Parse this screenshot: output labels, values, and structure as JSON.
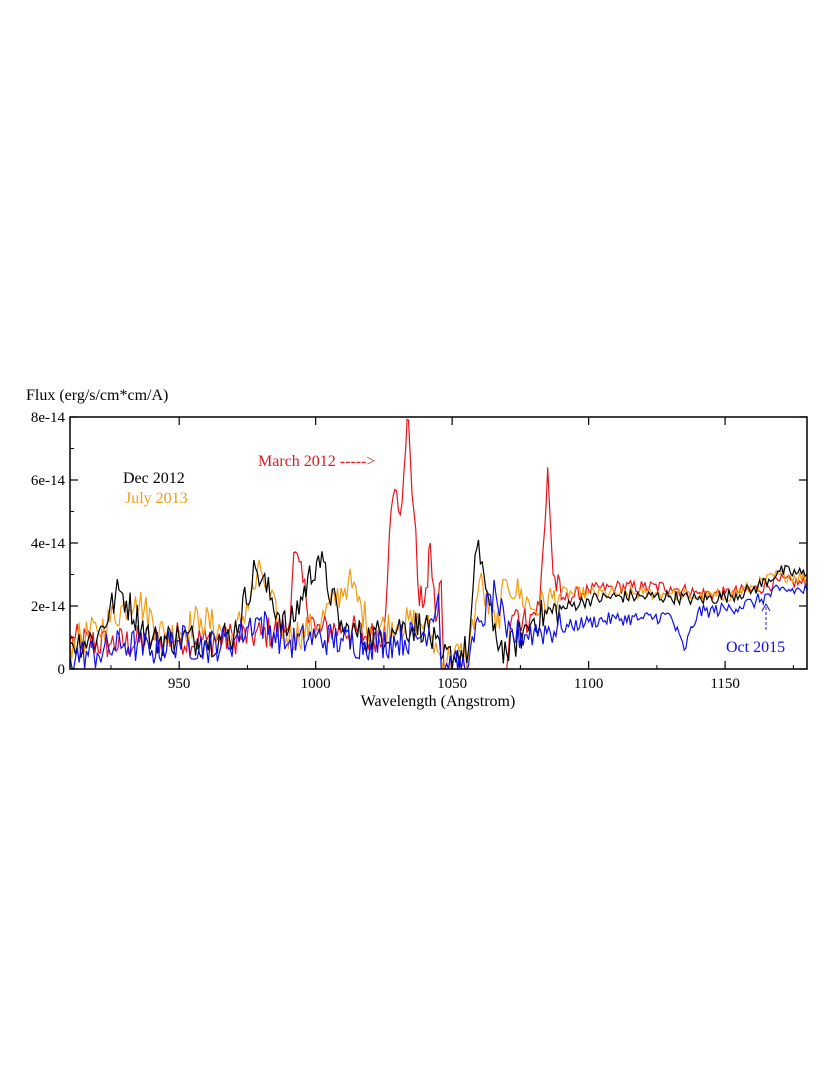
{
  "chart_data": {
    "type": "line",
    "title": "",
    "xlabel": "Wavelength (Angstrom)",
    "ylabel": "Flux (erg/s/cm*cm/A)",
    "xlim": [
      910,
      1180
    ],
    "ylim": [
      0,
      8e-14
    ],
    "x_ticks": [
      950,
      1000,
      1050,
      1100,
      1150
    ],
    "y_ticks": [
      0,
      2e-14,
      4e-14,
      6e-14,
      8e-14
    ],
    "y_tick_labels": [
      "0",
      "2e-14",
      "4e-14",
      "6e-14",
      "8e-14"
    ],
    "grid": false,
    "series": [
      {
        "name": "March 2012",
        "color": "#e8141b",
        "points": [
          [
            910,
            9e-15
          ],
          [
            925,
            8e-15
          ],
          [
            940,
            9e-15
          ],
          [
            950,
            1e-14
          ],
          [
            960,
            9e-15
          ],
          [
            970,
            1e-14
          ],
          [
            980,
            1.1e-14
          ],
          [
            990,
            1.3e-14
          ],
          [
            992,
            3.7e-14
          ],
          [
            1000,
            1.2e-14
          ],
          [
            1010,
            1.3e-14
          ],
          [
            1020,
            1e-14
          ],
          [
            1025,
            1.2e-14
          ],
          [
            1027,
            4.3e-14
          ],
          [
            1029,
            5.7e-14
          ],
          [
            1031,
            4.9e-14
          ],
          [
            1033,
            7e-14
          ],
          [
            1034,
            7.9e-14
          ],
          [
            1036,
            5e-14
          ],
          [
            1038,
            2e-14
          ],
          [
            1041,
            2.6e-14
          ],
          [
            1042,
            4e-14
          ],
          [
            1044,
            1.5e-14
          ],
          [
            1046,
            2.8e-14
          ],
          [
            1047,
            0.0
          ],
          [
            1070,
            0.0
          ],
          [
            1072,
            1.7e-14
          ],
          [
            1076,
            1.6e-14
          ],
          [
            1080,
            1.8e-14
          ],
          [
            1082,
            2e-14
          ],
          [
            1084,
            4.6e-14
          ],
          [
            1085,
            6.4e-14
          ],
          [
            1087,
            3e-14
          ],
          [
            1090,
            2.2e-14
          ],
          [
            1100,
            2.5e-14
          ],
          [
            1110,
            2.6e-14
          ],
          [
            1120,
            2.6e-14
          ],
          [
            1130,
            2.6e-14
          ],
          [
            1140,
            2.4e-14
          ],
          [
            1150,
            2.4e-14
          ],
          [
            1160,
            2.5e-14
          ],
          [
            1170,
            2.8e-14
          ],
          [
            1180,
            2.7e-14
          ]
        ]
      },
      {
        "name": "Dec 2012",
        "color": "#000000",
        "points": [
          [
            910,
            8e-15
          ],
          [
            920,
            1e-14
          ],
          [
            928,
            2.5e-14
          ],
          [
            940,
            9e-15
          ],
          [
            950,
            1e-14
          ],
          [
            960,
            9e-15
          ],
          [
            970,
            1.1e-14
          ],
          [
            978,
            3.2e-14
          ],
          [
            990,
            1.2e-14
          ],
          [
            1001,
            3.6e-14
          ],
          [
            1010,
            1.2e-14
          ],
          [
            1020,
            1e-14
          ],
          [
            1030,
            1.3e-14
          ],
          [
            1040,
            1.4e-14
          ],
          [
            1046,
            3e-15
          ],
          [
            1056,
            6e-15
          ],
          [
            1059,
            3.8e-14
          ],
          [
            1061,
            3.4e-14
          ],
          [
            1065,
            1.2e-14
          ],
          [
            1070,
            5e-15
          ],
          [
            1080,
            1.6e-14
          ],
          [
            1090,
            1.9e-14
          ],
          [
            1100,
            2.2e-14
          ],
          [
            1110,
            2.3e-14
          ],
          [
            1120,
            2.3e-14
          ],
          [
            1130,
            2.3e-14
          ],
          [
            1140,
            2.2e-14
          ],
          [
            1150,
            2.3e-14
          ],
          [
            1160,
            2.5e-14
          ],
          [
            1170,
            3.1e-14
          ],
          [
            1180,
            3e-14
          ]
        ]
      },
      {
        "name": "July 2013",
        "color": "#f39c12",
        "points": [
          [
            910,
            8e-15
          ],
          [
            920,
            1.2e-14
          ],
          [
            934,
            2.3e-14
          ],
          [
            945,
            1e-14
          ],
          [
            950,
            1.2e-14
          ],
          [
            958,
            1.6e-14
          ],
          [
            970,
            1e-14
          ],
          [
            980,
            3.1e-14
          ],
          [
            988,
            1e-14
          ],
          [
            1000,
            1.3e-14
          ],
          [
            1012,
            2.8e-14
          ],
          [
            1020,
            1.3e-14
          ],
          [
            1030,
            1.4e-14
          ],
          [
            1040,
            1.5e-14
          ],
          [
            1046,
            3e-15
          ],
          [
            1056,
            5e-15
          ],
          [
            1060,
            2.8e-14
          ],
          [
            1066,
            1.3e-14
          ],
          [
            1070,
            2.8e-14
          ],
          [
            1080,
            1.9e-14
          ],
          [
            1090,
            2.4e-14
          ],
          [
            1100,
            2.4e-14
          ],
          [
            1110,
            2.4e-14
          ],
          [
            1120,
            2.4e-14
          ],
          [
            1130,
            2.4e-14
          ],
          [
            1140,
            2.3e-14
          ],
          [
            1150,
            2.3e-14
          ],
          [
            1160,
            2.6e-14
          ],
          [
            1170,
            3e-14
          ],
          [
            1180,
            2.9e-14
          ]
        ]
      },
      {
        "name": "Oct 2015",
        "color": "#1010e8",
        "points": [
          [
            910,
            4e-15
          ],
          [
            920,
            5e-15
          ],
          [
            930,
            8e-15
          ],
          [
            940,
            6e-15
          ],
          [
            950,
            9e-15
          ],
          [
            960,
            7e-15
          ],
          [
            970,
            9e-15
          ],
          [
            978,
            1.6e-14
          ],
          [
            990,
            8e-15
          ],
          [
            1000,
            1e-14
          ],
          [
            1010,
            9e-15
          ],
          [
            1020,
            8e-15
          ],
          [
            1030,
            9e-15
          ],
          [
            1040,
            1.1e-14
          ],
          [
            1045,
            2.4e-14
          ],
          [
            1046,
            0.0
          ],
          [
            1056,
            1e-15
          ],
          [
            1060,
            1.5e-14
          ],
          [
            1066,
            2.4e-14
          ],
          [
            1070,
            1e-14
          ],
          [
            1080,
            1.2e-14
          ],
          [
            1090,
            1.3e-14
          ],
          [
            1100,
            1.5e-14
          ],
          [
            1110,
            1.6e-14
          ],
          [
            1120,
            1.6e-14
          ],
          [
            1130,
            1.7e-14
          ],
          [
            1135,
            6e-15
          ],
          [
            1140,
            1.8e-14
          ],
          [
            1150,
            1.9e-14
          ],
          [
            1160,
            2.1e-14
          ],
          [
            1170,
            2.5e-14
          ],
          [
            1180,
            2.5e-14
          ]
        ]
      }
    ],
    "annotations": [
      {
        "text": "March 2012 ----->",
        "color": "#e8141b"
      },
      {
        "text": "Dec 2012",
        "color": "#000000"
      },
      {
        "text": "July 2013",
        "color": "#f39c12"
      },
      {
        "text": "Oct 2015",
        "color": "#1010e8"
      }
    ]
  }
}
